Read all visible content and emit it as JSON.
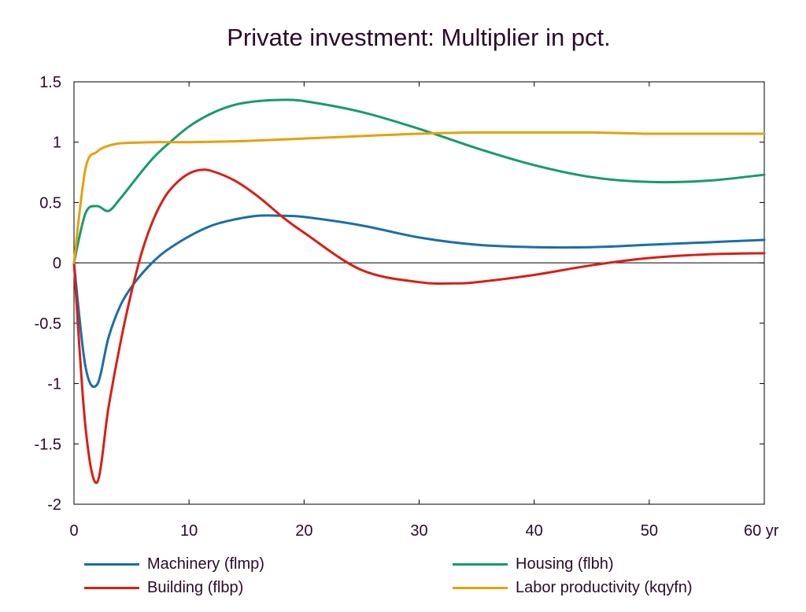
{
  "chart_data": {
    "type": "line",
    "title": "Private investment: Multiplier in pct.",
    "xlabel": "",
    "ylabel": "",
    "x_unit_label": "yr",
    "xlim": [
      0,
      60
    ],
    "ylim": [
      -2,
      1.5
    ],
    "x_ticks": [
      0,
      10,
      20,
      30,
      40,
      50,
      60
    ],
    "x_tick_labels": [
      "0",
      "10",
      "20",
      "30",
      "40",
      "50",
      "60 yr"
    ],
    "y_ticks": [
      1.5,
      1,
      0.5,
      0,
      -0.5,
      -1,
      -1.5,
      -2
    ],
    "y_tick_labels": [
      "1.5",
      "1",
      "0.5",
      "0",
      "-0.5",
      "-1",
      "-1.5",
      "-2"
    ],
    "grid": false,
    "legend_position": "bottom",
    "series": [
      {
        "name": "Machinery (flmp)",
        "color": "#1a6ea8",
        "x": [
          0,
          1,
          2,
          3,
          4,
          5,
          6,
          7,
          8,
          10,
          12,
          14,
          16,
          18,
          20,
          25,
          30,
          35,
          40,
          45,
          50,
          55,
          60
        ],
        "y": [
          0,
          -0.86,
          -1.01,
          -0.62,
          -0.36,
          -0.2,
          -0.08,
          0.02,
          0.1,
          0.22,
          0.31,
          0.36,
          0.39,
          0.39,
          0.38,
          0.31,
          0.21,
          0.15,
          0.13,
          0.13,
          0.15,
          0.17,
          0.19
        ]
      },
      {
        "name": "Housing (flbh)",
        "color": "#179a6f",
        "x": [
          0,
          1,
          2,
          3,
          4,
          5,
          6,
          7,
          8,
          10,
          12,
          14,
          16,
          18,
          20,
          25,
          30,
          35,
          40,
          45,
          50,
          55,
          60
        ],
        "y": [
          0,
          0.41,
          0.47,
          0.43,
          0.53,
          0.65,
          0.77,
          0.88,
          0.97,
          1.13,
          1.24,
          1.31,
          1.34,
          1.35,
          1.34,
          1.25,
          1.11,
          0.95,
          0.81,
          0.71,
          0.67,
          0.68,
          0.73
        ]
      },
      {
        "name": "Building (flbp)",
        "color": "#d81f16",
        "x": [
          0,
          1,
          2,
          3,
          4,
          5,
          6,
          7,
          8,
          9,
          10,
          11,
          12,
          14,
          16,
          18,
          20,
          25,
          30,
          33,
          35,
          40,
          45,
          50,
          55,
          60
        ],
        "y": [
          0,
          -1.36,
          -1.82,
          -1.2,
          -0.68,
          -0.24,
          0.12,
          0.38,
          0.56,
          0.67,
          0.74,
          0.77,
          0.76,
          0.68,
          0.55,
          0.39,
          0.25,
          -0.06,
          -0.16,
          -0.17,
          -0.16,
          -0.1,
          -0.02,
          0.04,
          0.07,
          0.08
        ]
      },
      {
        "name": "Labor productivity (kqyfn)",
        "color": "#e3a20b",
        "x": [
          0,
          1,
          2,
          3,
          4,
          5,
          7,
          10,
          15,
          20,
          25,
          30,
          35,
          40,
          45,
          50,
          55,
          60
        ],
        "y": [
          0,
          0.78,
          0.92,
          0.97,
          0.99,
          0.995,
          1.0,
          1.0,
          1.01,
          1.03,
          1.05,
          1.07,
          1.08,
          1.08,
          1.08,
          1.07,
          1.07,
          1.07
        ]
      }
    ]
  }
}
